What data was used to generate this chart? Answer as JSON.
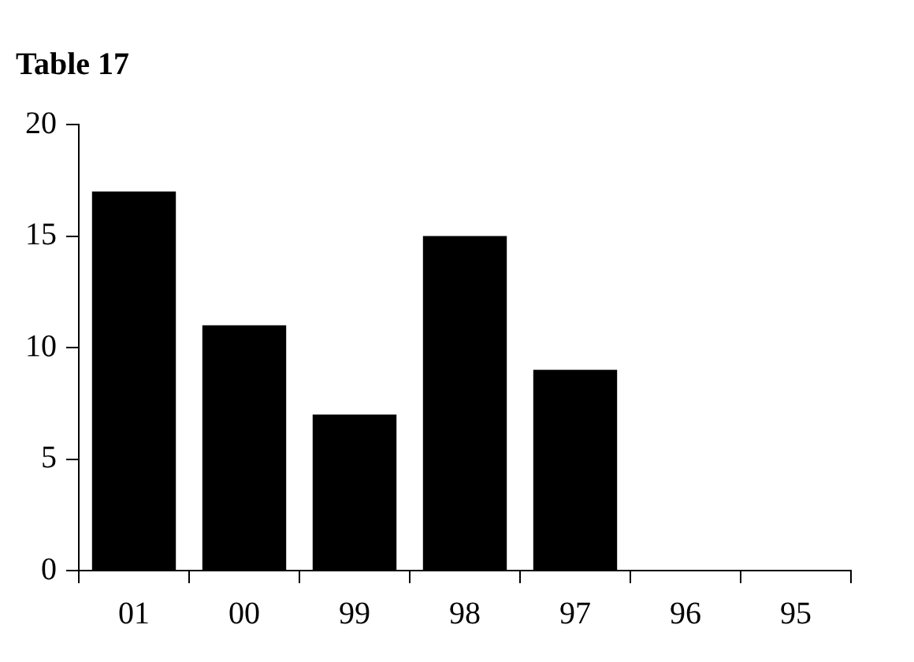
{
  "chart_data": {
    "type": "bar",
    "title": "Table 17",
    "categories": [
      "01",
      "00",
      "99",
      "98",
      "97",
      "96",
      "95"
    ],
    "values": [
      17,
      11,
      7,
      15,
      9,
      0,
      0
    ],
    "color": "#000000",
    "ylim": [
      0,
      20
    ],
    "yticks": [
      0,
      5,
      10,
      15,
      20
    ],
    "grid": false,
    "legend": false
  }
}
